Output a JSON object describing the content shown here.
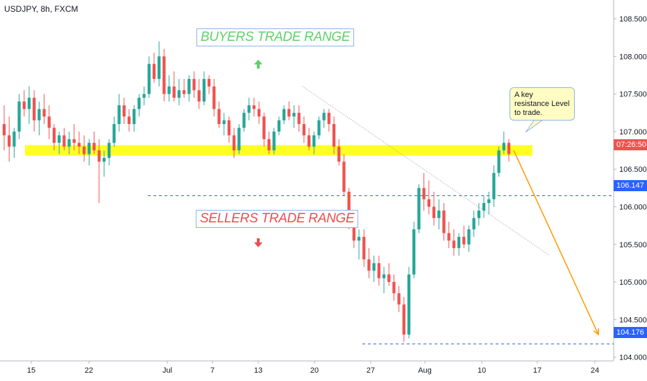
{
  "ticker": "USDJPY, 8h, FXCM",
  "annotations": {
    "buyers_label": "BUYERS TRADE RANGE",
    "sellers_label": "SELLERS TRADE RANGE",
    "callout_text": "A key resistance Level to trade."
  },
  "price_tags": {
    "last_label": "07:26:50",
    "level_upper": "106.147",
    "level_lower": "104.176"
  },
  "colors": {
    "up": "#26a69a",
    "down": "#ef5350",
    "zone": "#ffff00",
    "level_line": "#2962ff",
    "projection": "#ff9800"
  },
  "chart_data": {
    "type": "candlestick",
    "title": "USDJPY, 8h, FXCM",
    "y_ticks": [
      "108.500",
      "108.000",
      "107.500",
      "107.000",
      "106.500",
      "106.000",
      "105.500",
      "105.000",
      "104.500",
      "104.000"
    ],
    "x_ticks": [
      "15",
      "22",
      "Jul",
      "7",
      "13",
      "20",
      "27",
      "Aug",
      "10",
      "17",
      "24"
    ],
    "ylim": [
      103.95,
      108.75
    ],
    "resistance_zone": [
      106.68,
      106.82
    ],
    "levels": [
      106.147,
      104.176
    ],
    "projection": {
      "from": 106.75,
      "to": 104.3
    },
    "trendline": {
      "from": 107.6,
      "to": 105.35
    },
    "candles": [
      [
        107.1,
        107.35,
        106.75,
        106.95
      ],
      [
        106.95,
        107.2,
        106.6,
        106.8
      ],
      [
        106.8,
        107.05,
        106.65,
        107.0
      ],
      [
        107.0,
        107.5,
        106.9,
        107.4
      ],
      [
        107.4,
        107.55,
        107.2,
        107.3
      ],
      [
        107.3,
        107.6,
        107.1,
        107.45
      ],
      [
        107.45,
        107.55,
        107.0,
        107.15
      ],
      [
        107.15,
        107.4,
        106.95,
        107.3
      ],
      [
        107.3,
        107.5,
        107.1,
        107.2
      ],
      [
        107.2,
        107.35,
        106.9,
        107.05
      ],
      [
        107.05,
        107.1,
        106.75,
        106.85
      ],
      [
        106.85,
        107.0,
        106.7,
        106.95
      ],
      [
        106.95,
        107.05,
        106.75,
        106.8
      ],
      [
        106.8,
        107.0,
        106.7,
        106.9
      ],
      [
        106.9,
        107.1,
        106.75,
        106.85
      ],
      [
        106.85,
        107.0,
        106.7,
        106.8
      ],
      [
        106.8,
        106.95,
        106.6,
        106.7
      ],
      [
        106.7,
        106.9,
        106.55,
        106.85
      ],
      [
        106.85,
        107.0,
        106.7,
        106.75
      ],
      [
        106.75,
        106.9,
        106.05,
        106.6
      ],
      [
        106.6,
        106.75,
        106.4,
        106.65
      ],
      [
        106.65,
        106.9,
        106.55,
        106.85
      ],
      [
        106.85,
        107.2,
        106.8,
        107.1
      ],
      [
        107.1,
        107.5,
        107.0,
        107.35
      ],
      [
        107.35,
        107.45,
        107.1,
        107.2
      ],
      [
        107.2,
        107.3,
        107.0,
        107.1
      ],
      [
        107.1,
        107.35,
        107.0,
        107.3
      ],
      [
        107.3,
        107.5,
        107.2,
        107.45
      ],
      [
        107.45,
        107.6,
        107.35,
        107.5
      ],
      [
        107.5,
        108.0,
        107.45,
        107.9
      ],
      [
        107.9,
        108.05,
        107.65,
        107.7
      ],
      [
        107.7,
        108.2,
        107.6,
        108.0
      ],
      [
        108.0,
        108.1,
        107.4,
        107.5
      ],
      [
        107.5,
        107.75,
        107.4,
        107.6
      ],
      [
        107.6,
        107.8,
        107.4,
        107.45
      ],
      [
        107.45,
        107.7,
        107.35,
        107.55
      ],
      [
        107.55,
        107.7,
        107.45,
        107.5
      ],
      [
        107.5,
        107.75,
        107.4,
        107.7
      ],
      [
        107.7,
        107.8,
        107.45,
        107.55
      ],
      [
        107.55,
        107.7,
        107.3,
        107.4
      ],
      [
        107.4,
        107.8,
        107.35,
        107.7
      ],
      [
        107.7,
        107.75,
        107.5,
        107.6
      ],
      [
        107.6,
        107.7,
        107.2,
        107.3
      ],
      [
        107.3,
        107.4,
        107.05,
        107.1
      ],
      [
        107.1,
        107.25,
        106.95,
        107.15
      ],
      [
        107.15,
        107.2,
        106.85,
        106.95
      ],
      [
        106.95,
        107.05,
        106.65,
        106.75
      ],
      [
        106.75,
        107.1,
        106.7,
        107.05
      ],
      [
        107.05,
        107.3,
        107.0,
        107.25
      ],
      [
        107.25,
        107.45,
        107.15,
        107.35
      ],
      [
        107.35,
        107.45,
        107.2,
        107.3
      ],
      [
        107.3,
        107.4,
        107.1,
        107.2
      ],
      [
        107.2,
        107.25,
        106.8,
        106.9
      ],
      [
        106.9,
        107.0,
        106.7,
        106.75
      ],
      [
        106.75,
        107.05,
        106.7,
        107.0
      ],
      [
        107.0,
        107.2,
        106.95,
        107.15
      ],
      [
        107.15,
        107.35,
        107.1,
        107.3
      ],
      [
        107.3,
        107.4,
        107.15,
        107.2
      ],
      [
        107.2,
        107.35,
        107.05,
        107.25
      ],
      [
        107.25,
        107.35,
        107.0,
        107.1
      ],
      [
        107.1,
        107.2,
        106.85,
        106.95
      ],
      [
        106.95,
        107.05,
        106.75,
        106.8
      ],
      [
        106.8,
        107.0,
        106.7,
        106.95
      ],
      [
        106.95,
        107.2,
        106.9,
        107.15
      ],
      [
        107.15,
        107.3,
        107.05,
        107.25
      ],
      [
        107.25,
        107.3,
        107.0,
        107.1
      ],
      [
        107.1,
        107.2,
        106.7,
        106.8
      ],
      [
        106.8,
        106.9,
        106.55,
        106.6
      ],
      [
        106.6,
        106.7,
        106.15,
        106.2
      ],
      [
        106.2,
        106.25,
        105.7,
        105.8
      ],
      [
        105.8,
        105.95,
        105.45,
        105.55
      ],
      [
        105.55,
        105.7,
        105.3,
        105.6
      ],
      [
        105.6,
        105.7,
        105.2,
        105.3
      ],
      [
        105.3,
        105.45,
        105.05,
        105.15
      ],
      [
        105.15,
        105.35,
        105.0,
        105.25
      ],
      [
        105.25,
        105.35,
        104.95,
        105.05
      ],
      [
        105.05,
        105.2,
        104.85,
        105.1
      ],
      [
        105.1,
        105.25,
        104.95,
        105.0
      ],
      [
        105.0,
        105.1,
        104.75,
        104.85
      ],
      [
        104.85,
        104.95,
        104.6,
        104.7
      ],
      [
        104.7,
        104.8,
        104.2,
        104.3
      ],
      [
        104.3,
        105.2,
        104.25,
        105.1
      ],
      [
        105.1,
        105.8,
        105.05,
        105.7
      ],
      [
        105.7,
        106.3,
        105.65,
        106.25
      ],
      [
        106.25,
        106.45,
        105.95,
        106.1
      ],
      [
        106.1,
        106.35,
        105.9,
        106.0
      ],
      [
        106.0,
        106.2,
        105.75,
        105.85
      ],
      [
        105.85,
        106.1,
        105.7,
        105.95
      ],
      [
        105.95,
        106.05,
        105.55,
        105.65
      ],
      [
        105.65,
        105.8,
        105.45,
        105.55
      ],
      [
        105.55,
        105.7,
        105.35,
        105.45
      ],
      [
        105.45,
        105.65,
        105.35,
        105.6
      ],
      [
        105.6,
        105.75,
        105.45,
        105.5
      ],
      [
        105.5,
        105.75,
        105.4,
        105.7
      ],
      [
        105.7,
        105.95,
        105.6,
        105.85
      ],
      [
        105.85,
        106.05,
        105.75,
        105.95
      ],
      [
        105.95,
        106.15,
        105.85,
        106.05
      ],
      [
        106.05,
        106.2,
        105.9,
        106.1
      ],
      [
        106.1,
        106.55,
        106.0,
        106.45
      ],
      [
        106.45,
        106.8,
        106.4,
        106.75
      ],
      [
        106.75,
        107.0,
        106.7,
        106.85
      ],
      [
        106.85,
        106.9,
        106.6,
        106.7
      ]
    ]
  }
}
